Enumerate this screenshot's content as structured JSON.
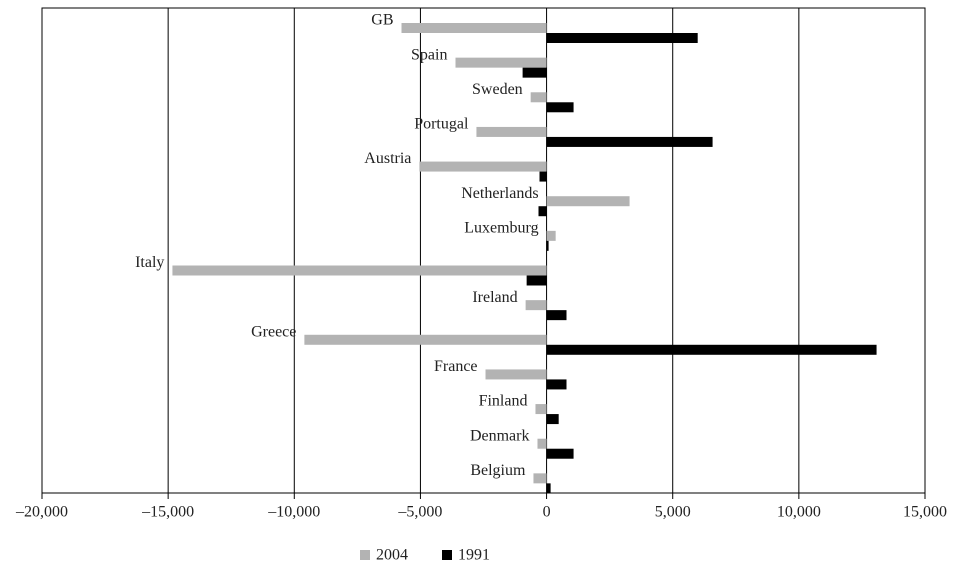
{
  "chart_data": {
    "type": "hbar",
    "categories": [
      "GB",
      "Spain",
      "Sweden",
      "Portugal",
      "Austria",
      "Netherlands",
      "Luxemburg",
      "Italy",
      "Ireland",
      "Greece",
      "France",
      "Finland",
      "Denmark",
      "Belgium"
    ],
    "series": [
      {
        "name": "2004",
        "color": "#b3b3b3",
        "values": [
          -5750,
          -3610,
          -630,
          -2780,
          -5040,
          3290,
          360,
          -14830,
          -830,
          -9600,
          -2420,
          -440,
          -360,
          -520
        ]
      },
      {
        "name": "1991",
        "color": "#000000",
        "values": [
          5990,
          -950,
          1070,
          6580,
          -280,
          -320,
          80,
          -790,
          790,
          13080,
          790,
          480,
          1070,
          160
        ]
      }
    ],
    "xlim": [
      -20000,
      15000
    ],
    "xticks": [
      {
        "value": -20000,
        "label": "–20,000"
      },
      {
        "value": -15000,
        "label": "–15,000"
      },
      {
        "value": -10000,
        "label": "–10,000"
      },
      {
        "value": -5000,
        "label": "–5,000"
      },
      0,
      {
        "value": 5000,
        "label": "5,000"
      },
      {
        "value": 10000,
        "label": "10,000"
      },
      {
        "value": 15000,
        "label": "15,000"
      }
    ],
    "grid": true,
    "legend": "bottom"
  }
}
